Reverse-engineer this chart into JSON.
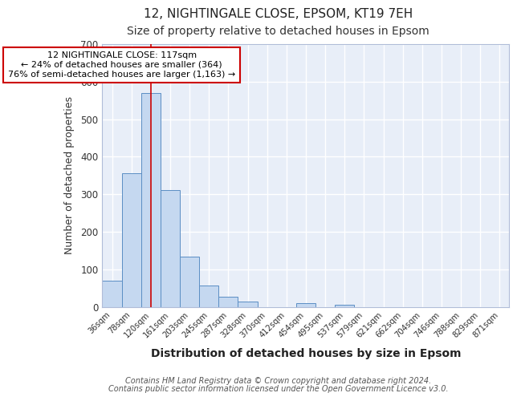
{
  "title1": "12, NIGHTINGALE CLOSE, EPSOM, KT19 7EH",
  "title2": "Size of property relative to detached houses in Epsom",
  "xlabel": "Distribution of detached houses by size in Epsom",
  "ylabel": "Number of detached properties",
  "categories": [
    "36sqm",
    "78sqm",
    "120sqm",
    "161sqm",
    "203sqm",
    "245sqm",
    "287sqm",
    "328sqm",
    "370sqm",
    "412sqm",
    "454sqm",
    "495sqm",
    "537sqm",
    "579sqm",
    "621sqm",
    "662sqm",
    "704sqm",
    "746sqm",
    "788sqm",
    "829sqm",
    "871sqm"
  ],
  "values": [
    70,
    355,
    570,
    312,
    133,
    57,
    27,
    14,
    0,
    0,
    10,
    0,
    5,
    0,
    0,
    0,
    0,
    0,
    0,
    0,
    0
  ],
  "bar_color": "#c5d8f0",
  "bar_edge_color": "#5b8ec4",
  "background_color": "#e8eef8",
  "grid_color": "#ffffff",
  "vline_x_index": 2,
  "vline_color": "#cc0000",
  "annotation_line1": "12 NIGHTINGALE CLOSE: 117sqm",
  "annotation_line2": "← 24% of detached houses are smaller (364)",
  "annotation_line3": "76% of semi-detached houses are larger (1,163) →",
  "annotation_box_color": "#ffffff",
  "annotation_box_edge_color": "#cc0000",
  "ylim": [
    0,
    700
  ],
  "yticks": [
    0,
    100,
    200,
    300,
    400,
    500,
    600,
    700
  ],
  "footer_line1": "Contains HM Land Registry data © Crown copyright and database right 2024.",
  "footer_line2": "Contains public sector information licensed under the Open Government Licence v3.0.",
  "title1_fontsize": 11,
  "title2_fontsize": 10,
  "xlabel_fontsize": 10,
  "ylabel_fontsize": 9
}
